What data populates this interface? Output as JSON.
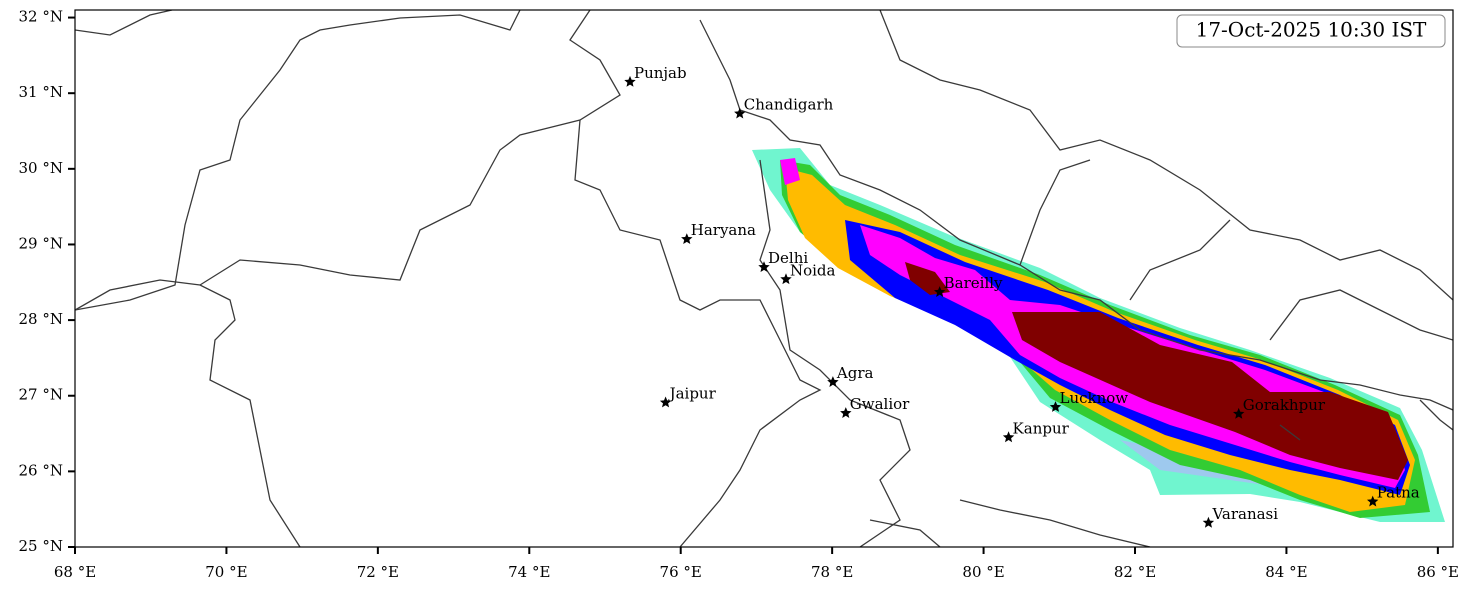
{
  "map": {
    "timestamp": "17-Oct-2025 10:30 IST",
    "xlim": [
      68,
      86.2
    ],
    "ylim": [
      25,
      32.1
    ],
    "xticks": [
      {
        "value": 68,
        "label": "68 °E"
      },
      {
        "value": 70,
        "label": "70 °E"
      },
      {
        "value": 72,
        "label": "72 °E"
      },
      {
        "value": 74,
        "label": "74 °E"
      },
      {
        "value": 76,
        "label": "76 °E"
      },
      {
        "value": 78,
        "label": "78 °E"
      },
      {
        "value": 80,
        "label": "80 °E"
      },
      {
        "value": 82,
        "label": "82 °E"
      },
      {
        "value": 84,
        "label": "84 °E"
      },
      {
        "value": 86,
        "label": "86 °E"
      }
    ],
    "yticks": [
      {
        "value": 25,
        "label": "25 °N"
      },
      {
        "value": 26,
        "label": "26 °N"
      },
      {
        "value": 27,
        "label": "27 °N"
      },
      {
        "value": 28,
        "label": "28 °N"
      },
      {
        "value": 29,
        "label": "29 °N"
      },
      {
        "value": 30,
        "label": "30 °N"
      },
      {
        "value": 31,
        "label": "31 °N"
      },
      {
        "value": 32,
        "label": "32 °N"
      }
    ],
    "cities": [
      {
        "name": "Punjab",
        "lon": 75.33,
        "lat": 31.15
      },
      {
        "name": "Chandigarh",
        "lon": 76.78,
        "lat": 30.73
      },
      {
        "name": "Haryana",
        "lon": 76.08,
        "lat": 29.07
      },
      {
        "name": "Delhi",
        "lon": 77.1,
        "lat": 28.7
      },
      {
        "name": "Noida",
        "lon": 77.39,
        "lat": 28.54
      },
      {
        "name": "Bareilly",
        "lon": 79.42,
        "lat": 28.37
      },
      {
        "name": "Agra",
        "lon": 78.01,
        "lat": 27.18
      },
      {
        "name": "Jaipur",
        "lon": 75.8,
        "lat": 26.91
      },
      {
        "name": "Gwalior",
        "lon": 78.18,
        "lat": 26.77
      },
      {
        "name": "Lucknow",
        "lon": 80.95,
        "lat": 26.85
      },
      {
        "name": "Kanpur",
        "lon": 80.33,
        "lat": 26.45
      },
      {
        "name": "Gorakhpur",
        "lon": 83.37,
        "lat": 26.76
      },
      {
        "name": "Varanasi",
        "lon": 82.97,
        "lat": 25.32
      },
      {
        "name": "Patna",
        "lon": 85.14,
        "lat": 25.6
      }
    ]
  }
}
